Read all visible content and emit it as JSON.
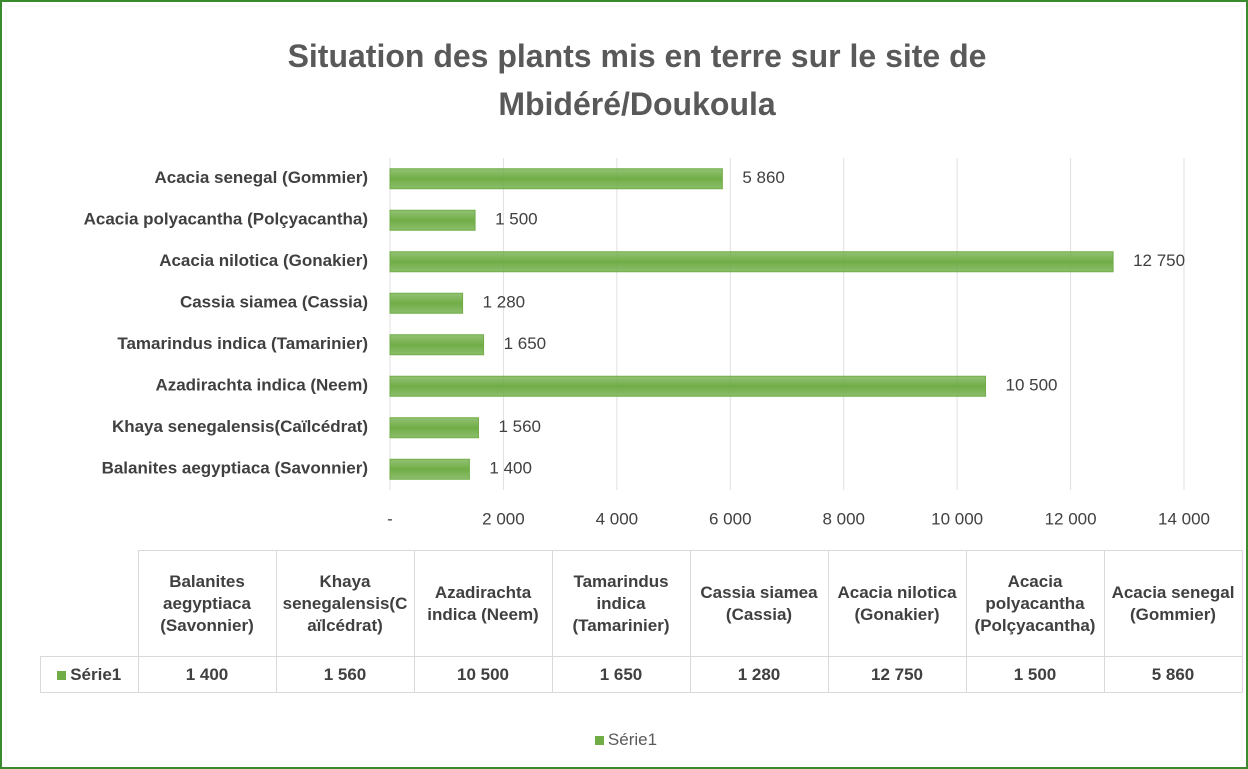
{
  "chart_data": {
    "type": "bar",
    "orientation": "horizontal",
    "title": "Situation des plants mis en terre sur le site de Mbidéré/Doukoula",
    "categories": [
      "Balanites aegyptiaca (Savonnier)",
      "Khaya senegalensis(Caïlcédrat)",
      "Azadirachta indica (Neem)",
      "Tamarindus indica (Tamarinier)",
      "Cassia siamea (Cassia)",
      "Acacia nilotica (Gonakier)",
      "Acacia polyacantha (Polçyacantha)",
      "Acacia senegal (Gommier)"
    ],
    "series": [
      {
        "name": "Série1",
        "color": "#70ad47",
        "values": [
          1400,
          1560,
          10500,
          1650,
          1280,
          12750,
          1500,
          5860
        ],
        "value_labels": [
          "1 400",
          "1 560",
          "10 500",
          "1 650",
          "1 280",
          "12 750",
          "1 500",
          "5 860"
        ]
      }
    ],
    "xlim": [
      0,
      14000
    ],
    "xticks": [
      {
        "value": 0,
        "label": "-"
      },
      {
        "value": 2000,
        "label": "2 000"
      },
      {
        "value": 4000,
        "label": "4 000"
      },
      {
        "value": 6000,
        "label": "6 000"
      },
      {
        "value": 8000,
        "label": "8 000"
      },
      {
        "value": 10000,
        "label": "10 000"
      },
      {
        "value": 12000,
        "label": "12 000"
      },
      {
        "value": 14000,
        "label": "14 000"
      }
    ],
    "grid": true,
    "legend": "bottom",
    "data_table": true
  }
}
